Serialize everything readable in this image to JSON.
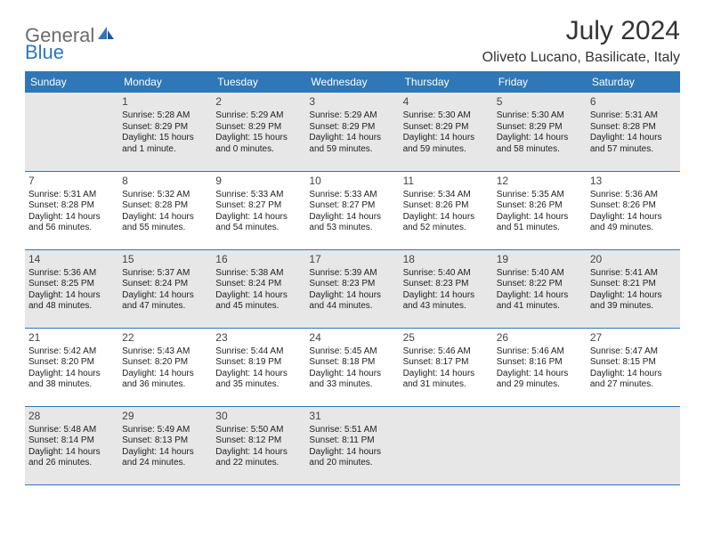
{
  "brand": {
    "text1": "General",
    "text2": "Blue"
  },
  "title": {
    "monthYear": "July 2024",
    "location": "Oliveto Lucano, Basilicate, Italy"
  },
  "colors": {
    "headerBg": "#2f77b6",
    "headerText": "#ffffff",
    "shaded": "#e7e7e7",
    "border": "#2f77b6",
    "bodyText": "#222222",
    "logoGray": "#6b6b6b",
    "logoBlue": "#2f77b6"
  },
  "daysOfWeek": [
    "Sunday",
    "Monday",
    "Tuesday",
    "Wednesday",
    "Thursday",
    "Friday",
    "Saturday"
  ],
  "weeks": [
    [
      {
        "n": "",
        "l1": "",
        "l2": "",
        "l3": "",
        "l4": "",
        "shade": true
      },
      {
        "n": "1",
        "l1": "Sunrise: 5:28 AM",
        "l2": "Sunset: 8:29 PM",
        "l3": "Daylight: 15 hours",
        "l4": "and 1 minute.",
        "shade": true
      },
      {
        "n": "2",
        "l1": "Sunrise: 5:29 AM",
        "l2": "Sunset: 8:29 PM",
        "l3": "Daylight: 15 hours",
        "l4": "and 0 minutes.",
        "shade": true
      },
      {
        "n": "3",
        "l1": "Sunrise: 5:29 AM",
        "l2": "Sunset: 8:29 PM",
        "l3": "Daylight: 14 hours",
        "l4": "and 59 minutes.",
        "shade": true
      },
      {
        "n": "4",
        "l1": "Sunrise: 5:30 AM",
        "l2": "Sunset: 8:29 PM",
        "l3": "Daylight: 14 hours",
        "l4": "and 59 minutes.",
        "shade": true
      },
      {
        "n": "5",
        "l1": "Sunrise: 5:30 AM",
        "l2": "Sunset: 8:29 PM",
        "l3": "Daylight: 14 hours",
        "l4": "and 58 minutes.",
        "shade": true
      },
      {
        "n": "6",
        "l1": "Sunrise: 5:31 AM",
        "l2": "Sunset: 8:28 PM",
        "l3": "Daylight: 14 hours",
        "l4": "and 57 minutes.",
        "shade": true
      }
    ],
    [
      {
        "n": "7",
        "l1": "Sunrise: 5:31 AM",
        "l2": "Sunset: 8:28 PM",
        "l3": "Daylight: 14 hours",
        "l4": "and 56 minutes.",
        "shade": false
      },
      {
        "n": "8",
        "l1": "Sunrise: 5:32 AM",
        "l2": "Sunset: 8:28 PM",
        "l3": "Daylight: 14 hours",
        "l4": "and 55 minutes.",
        "shade": false
      },
      {
        "n": "9",
        "l1": "Sunrise: 5:33 AM",
        "l2": "Sunset: 8:27 PM",
        "l3": "Daylight: 14 hours",
        "l4": "and 54 minutes.",
        "shade": false
      },
      {
        "n": "10",
        "l1": "Sunrise: 5:33 AM",
        "l2": "Sunset: 8:27 PM",
        "l3": "Daylight: 14 hours",
        "l4": "and 53 minutes.",
        "shade": false
      },
      {
        "n": "11",
        "l1": "Sunrise: 5:34 AM",
        "l2": "Sunset: 8:26 PM",
        "l3": "Daylight: 14 hours",
        "l4": "and 52 minutes.",
        "shade": false
      },
      {
        "n": "12",
        "l1": "Sunrise: 5:35 AM",
        "l2": "Sunset: 8:26 PM",
        "l3": "Daylight: 14 hours",
        "l4": "and 51 minutes.",
        "shade": false
      },
      {
        "n": "13",
        "l1": "Sunrise: 5:36 AM",
        "l2": "Sunset: 8:26 PM",
        "l3": "Daylight: 14 hours",
        "l4": "and 49 minutes.",
        "shade": false
      }
    ],
    [
      {
        "n": "14",
        "l1": "Sunrise: 5:36 AM",
        "l2": "Sunset: 8:25 PM",
        "l3": "Daylight: 14 hours",
        "l4": "and 48 minutes.",
        "shade": true
      },
      {
        "n": "15",
        "l1": "Sunrise: 5:37 AM",
        "l2": "Sunset: 8:24 PM",
        "l3": "Daylight: 14 hours",
        "l4": "and 47 minutes.",
        "shade": true
      },
      {
        "n": "16",
        "l1": "Sunrise: 5:38 AM",
        "l2": "Sunset: 8:24 PM",
        "l3": "Daylight: 14 hours",
        "l4": "and 45 minutes.",
        "shade": true
      },
      {
        "n": "17",
        "l1": "Sunrise: 5:39 AM",
        "l2": "Sunset: 8:23 PM",
        "l3": "Daylight: 14 hours",
        "l4": "and 44 minutes.",
        "shade": true
      },
      {
        "n": "18",
        "l1": "Sunrise: 5:40 AM",
        "l2": "Sunset: 8:23 PM",
        "l3": "Daylight: 14 hours",
        "l4": "and 43 minutes.",
        "shade": true
      },
      {
        "n": "19",
        "l1": "Sunrise: 5:40 AM",
        "l2": "Sunset: 8:22 PM",
        "l3": "Daylight: 14 hours",
        "l4": "and 41 minutes.",
        "shade": true
      },
      {
        "n": "20",
        "l1": "Sunrise: 5:41 AM",
        "l2": "Sunset: 8:21 PM",
        "l3": "Daylight: 14 hours",
        "l4": "and 39 minutes.",
        "shade": true
      }
    ],
    [
      {
        "n": "21",
        "l1": "Sunrise: 5:42 AM",
        "l2": "Sunset: 8:20 PM",
        "l3": "Daylight: 14 hours",
        "l4": "and 38 minutes.",
        "shade": false
      },
      {
        "n": "22",
        "l1": "Sunrise: 5:43 AM",
        "l2": "Sunset: 8:20 PM",
        "l3": "Daylight: 14 hours",
        "l4": "and 36 minutes.",
        "shade": false
      },
      {
        "n": "23",
        "l1": "Sunrise: 5:44 AM",
        "l2": "Sunset: 8:19 PM",
        "l3": "Daylight: 14 hours",
        "l4": "and 35 minutes.",
        "shade": false
      },
      {
        "n": "24",
        "l1": "Sunrise: 5:45 AM",
        "l2": "Sunset: 8:18 PM",
        "l3": "Daylight: 14 hours",
        "l4": "and 33 minutes.",
        "shade": false
      },
      {
        "n": "25",
        "l1": "Sunrise: 5:46 AM",
        "l2": "Sunset: 8:17 PM",
        "l3": "Daylight: 14 hours",
        "l4": "and 31 minutes.",
        "shade": false
      },
      {
        "n": "26",
        "l1": "Sunrise: 5:46 AM",
        "l2": "Sunset: 8:16 PM",
        "l3": "Daylight: 14 hours",
        "l4": "and 29 minutes.",
        "shade": false
      },
      {
        "n": "27",
        "l1": "Sunrise: 5:47 AM",
        "l2": "Sunset: 8:15 PM",
        "l3": "Daylight: 14 hours",
        "l4": "and 27 minutes.",
        "shade": false
      }
    ],
    [
      {
        "n": "28",
        "l1": "Sunrise: 5:48 AM",
        "l2": "Sunset: 8:14 PM",
        "l3": "Daylight: 14 hours",
        "l4": "and 26 minutes.",
        "shade": true
      },
      {
        "n": "29",
        "l1": "Sunrise: 5:49 AM",
        "l2": "Sunset: 8:13 PM",
        "l3": "Daylight: 14 hours",
        "l4": "and 24 minutes.",
        "shade": true
      },
      {
        "n": "30",
        "l1": "Sunrise: 5:50 AM",
        "l2": "Sunset: 8:12 PM",
        "l3": "Daylight: 14 hours",
        "l4": "and 22 minutes.",
        "shade": true
      },
      {
        "n": "31",
        "l1": "Sunrise: 5:51 AM",
        "l2": "Sunset: 8:11 PM",
        "l3": "Daylight: 14 hours",
        "l4": "and 20 minutes.",
        "shade": true
      },
      {
        "n": "",
        "l1": "",
        "l2": "",
        "l3": "",
        "l4": "",
        "shade": true
      },
      {
        "n": "",
        "l1": "",
        "l2": "",
        "l3": "",
        "l4": "",
        "shade": true
      },
      {
        "n": "",
        "l1": "",
        "l2": "",
        "l3": "",
        "l4": "",
        "shade": true
      }
    ]
  ]
}
